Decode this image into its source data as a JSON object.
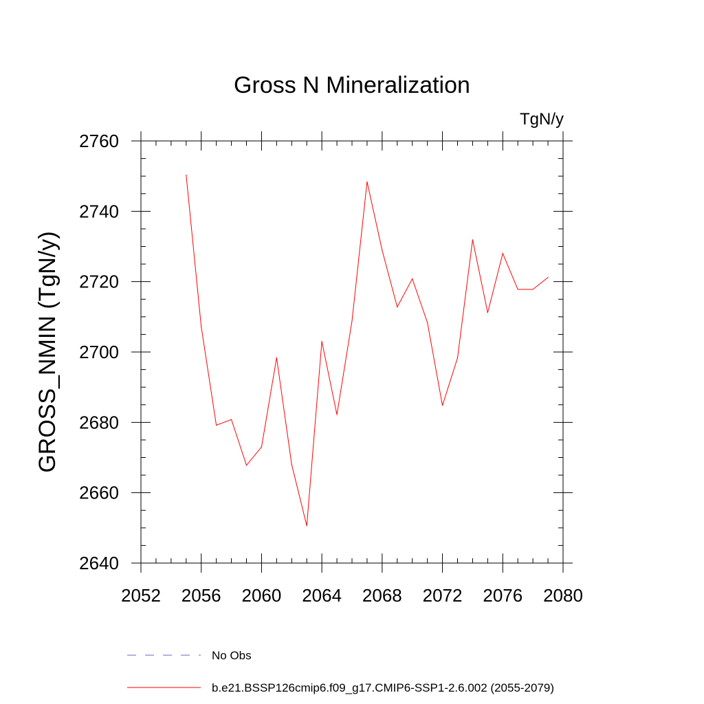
{
  "chart_data": {
    "type": "line",
    "title": "Gross N Mineralization",
    "units_label": "TgN/y",
    "ylabel": "GROSS_NMIN  (TgN/y)",
    "xlabel": "",
    "xlim": [
      2052,
      2080
    ],
    "ylim": [
      2640,
      2760
    ],
    "xticks": [
      2052,
      2056,
      2060,
      2064,
      2068,
      2072,
      2076,
      2080
    ],
    "yticks": [
      2640,
      2660,
      2680,
      2700,
      2720,
      2740,
      2760
    ],
    "grid": false,
    "legend_position": "bottom",
    "series": [
      {
        "name": "b.e21.BSSP126cmip6.f09_g17.CMIP6-SSP1-2.6.002 (2055-2079)",
        "color": "#ff0000",
        "style": "solid",
        "x": [
          2055,
          2056,
          2057,
          2058,
          2059,
          2060,
          2061,
          2062,
          2063,
          2064,
          2065,
          2066,
          2067,
          2068,
          2069,
          2070,
          2071,
          2072,
          2073,
          2074,
          2075,
          2076,
          2077,
          2078,
          2079
        ],
        "y": [
          2750.3,
          2707.2,
          2679.2,
          2680.8,
          2667.8,
          2673.0,
          2698.4,
          2668.0,
          2650.6,
          2703.0,
          2682.2,
          2708.8,
          2748.4,
          2728.9,
          2712.8,
          2720.8,
          2708.4,
          2684.8,
          2698.3,
          2731.9,
          2711.2,
          2728.0,
          2717.8,
          2717.8,
          2721.2
        ]
      }
    ],
    "legend": [
      {
        "label": "No Obs",
        "color": "#6666cc",
        "style": "dashed"
      },
      {
        "label": "b.e21.BSSP126cmip6.f09_g17.CMIP6-SSP1-2.6.002 (2055-2079)",
        "color": "#ff0000",
        "style": "solid"
      }
    ]
  }
}
